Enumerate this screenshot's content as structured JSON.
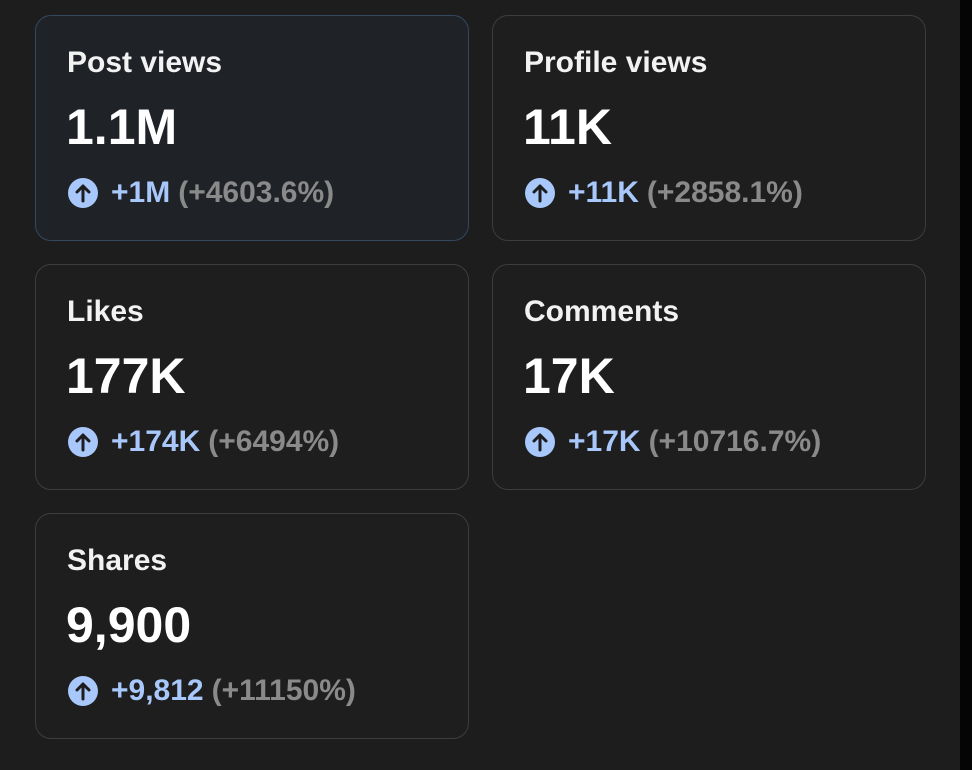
{
  "cards": [
    {
      "title": "Post views",
      "value": "1.1M",
      "change": "+1M",
      "percent": "(+4603.6%)"
    },
    {
      "title": "Profile views",
      "value": "11K",
      "change": "+11K",
      "percent": "(+2858.1%)"
    },
    {
      "title": "Likes",
      "value": "177K",
      "change": "+174K",
      "percent": "(+6494%)"
    },
    {
      "title": "Comments",
      "value": "17K",
      "change": "+17K",
      "percent": "(+10716.7%)"
    },
    {
      "title": "Shares",
      "value": "9,900",
      "change": "+9,812",
      "percent": "(+11150%)"
    }
  ]
}
